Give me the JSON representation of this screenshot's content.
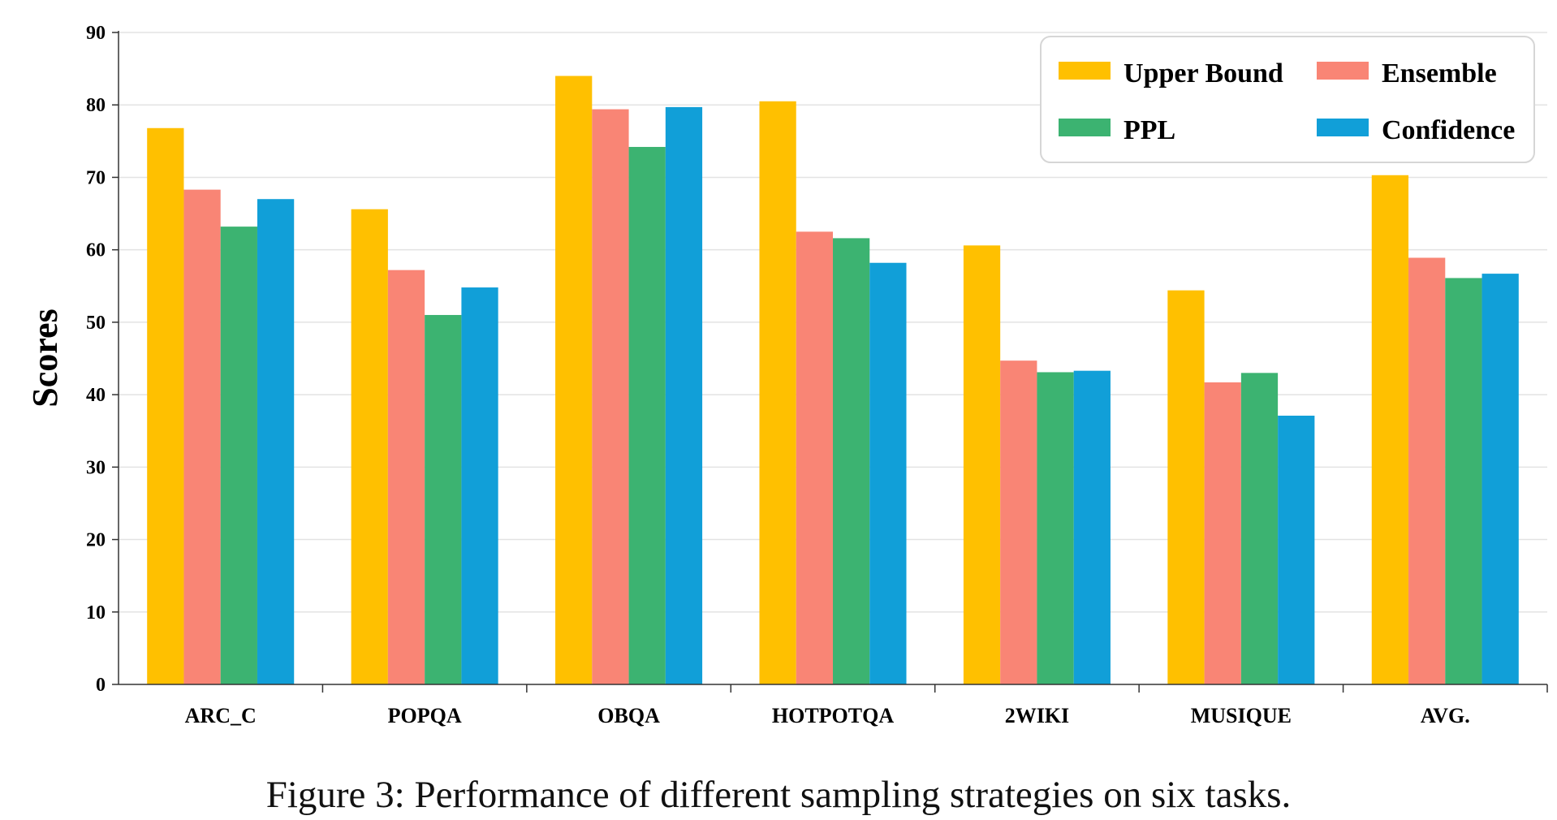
{
  "caption": "Figure 3: Performance of different sampling strategies on six tasks.",
  "chart_data": {
    "type": "bar",
    "title": "",
    "xlabel": "",
    "ylabel": "Scores",
    "ylim": [
      0,
      90
    ],
    "yticks": [
      0,
      10,
      20,
      30,
      40,
      50,
      60,
      70,
      80,
      90
    ],
    "grid": true,
    "legend_position": "top-right",
    "categories": [
      "ARC_C",
      "POPQA",
      "OBQA",
      "HOTPOTQA",
      "2WIKI",
      "MUSIQUE",
      "AVG."
    ],
    "series": [
      {
        "name": "Upper Bound",
        "color": "#FFC000",
        "values": [
          76.8,
          65.6,
          84.0,
          80.5,
          60.6,
          54.4,
          70.3
        ]
      },
      {
        "name": "Ensemble",
        "color": "#F98575",
        "values": [
          68.3,
          57.2,
          79.4,
          62.5,
          44.7,
          41.7,
          58.9
        ]
      },
      {
        "name": "PPL",
        "color": "#3CB371",
        "values": [
          63.2,
          51.0,
          74.2,
          61.6,
          43.1,
          43.0,
          56.1
        ]
      },
      {
        "name": "Confidence",
        "color": "#119FD8",
        "values": [
          67.0,
          54.8,
          79.7,
          58.2,
          43.3,
          37.1,
          56.7
        ]
      }
    ]
  }
}
